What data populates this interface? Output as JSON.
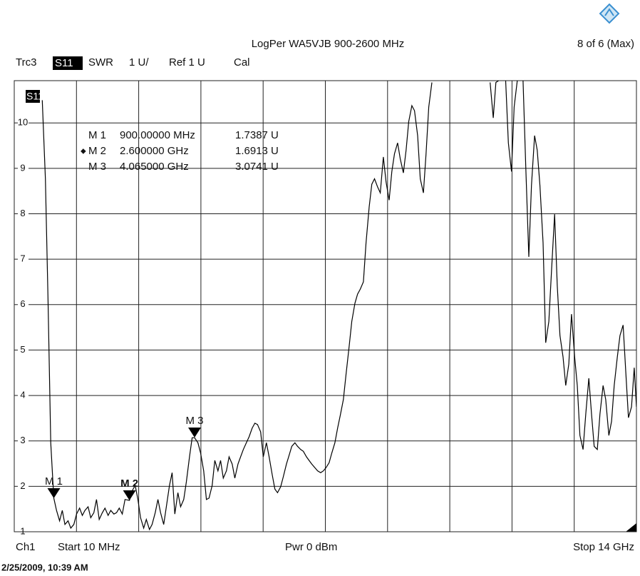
{
  "chart_data": {
    "type": "line",
    "title": "LogPer WA5VJB 900-2600 MHz",
    "title_right": "8 of 6 (Max)",
    "header": {
      "trace": "Trc3",
      "format": "SWR",
      "scale": "1 U/",
      "ref": "Ref 1 U",
      "cal": "Cal"
    },
    "footer": {
      "channel": "Ch1",
      "start": "Start 10 MHz",
      "power": "Pwr 0 dBm",
      "stop": "Stop 14 GHz"
    },
    "timestamp": "2/25/2009, 10:39 AM",
    "xlim": [
      0.01,
      14
    ],
    "ylim": [
      1,
      10.93
    ],
    "yticks": [
      1,
      2,
      3,
      4,
      5,
      6,
      7,
      8,
      9,
      10
    ],
    "x": [
      0.64,
      0.71,
      0.77,
      0.83,
      0.9,
      0.96,
      1.03,
      1.09,
      1.15,
      1.22,
      1.28,
      1.35,
      1.41,
      1.48,
      1.54,
      1.6,
      1.67,
      1.73,
      1.8,
      1.86,
      1.92,
      1.99,
      2.05,
      2.12,
      2.18,
      2.25,
      2.31,
      2.37,
      2.44,
      2.5,
      2.6,
      2.66,
      2.73,
      2.79,
      2.85,
      2.92,
      2.98,
      3.05,
      3.11,
      3.18,
      3.24,
      3.3,
      3.37,
      3.43,
      3.5,
      3.56,
      3.62,
      3.69,
      3.75,
      3.82,
      3.88,
      3.95,
      4.01,
      4.065,
      4.14,
      4.2,
      4.27,
      4.33,
      4.39,
      4.46,
      4.52,
      4.59,
      4.65,
      4.71,
      4.78,
      4.84,
      4.91,
      4.97,
      5.04,
      5.1,
      5.16,
      5.23,
      5.29,
      5.36,
      5.42,
      5.48,
      5.55,
      5.61,
      5.68,
      5.74,
      5.81,
      5.87,
      5.93,
      6.0,
      6.06,
      6.13,
      6.19,
      6.25,
      6.32,
      6.38,
      6.45,
      6.51,
      6.58,
      6.64,
      6.7,
      6.77,
      6.83,
      6.9,
      6.96,
      7.02,
      7.09,
      7.15,
      7.22,
      7.28,
      7.34,
      7.41,
      7.47,
      7.54,
      7.6,
      7.67,
      7.73,
      7.79,
      7.86,
      7.92,
      7.99,
      8.05,
      8.11,
      8.18,
      8.24,
      8.31,
      8.37,
      8.44,
      8.5,
      8.56,
      8.63,
      8.69,
      8.76,
      8.82,
      8.88,
      8.95,
      9.01,
      9.08,
      9.14,
      9.21,
      9.27,
      9.33,
      9.4,
      10.2,
      10.71,
      10.78,
      10.84,
      10.9,
      11.0,
      11.06,
      11.12,
      11.19,
      11.25,
      11.32,
      11.38,
      11.45,
      11.51,
      11.58,
      11.64,
      11.71,
      11.77,
      11.83,
      11.9,
      11.96,
      12.03,
      12.09,
      12.16,
      12.22,
      12.28,
      12.35,
      12.41,
      12.48,
      12.54,
      12.61,
      12.67,
      12.73,
      12.8,
      12.86,
      12.93,
      12.99,
      13.05,
      13.12,
      13.18,
      13.25,
      13.31,
      13.38,
      13.44,
      13.5,
      13.57,
      13.63,
      13.7,
      13.76,
      13.82,
      13.89,
      13.95,
      14.0
    ],
    "series": [
      {
        "name": "S11",
        "color": "#000000",
        "values": [
          10.5,
          8.77,
          6.1,
          2.96,
          1.74,
          1.47,
          1.24,
          1.47,
          1.16,
          1.24,
          1.08,
          1.16,
          1.39,
          1.52,
          1.36,
          1.47,
          1.55,
          1.31,
          1.42,
          1.71,
          1.27,
          1.42,
          1.52,
          1.36,
          1.47,
          1.39,
          1.42,
          1.52,
          1.39,
          1.71,
          1.69,
          1.9,
          2.02,
          1.71,
          1.31,
          1.08,
          1.27,
          1.05,
          1.16,
          1.42,
          1.71,
          1.42,
          1.16,
          1.55,
          2.02,
          2.3,
          1.39,
          1.86,
          1.55,
          1.71,
          2.1,
          2.65,
          3.07,
          3.07,
          2.96,
          2.73,
          2.34,
          1.71,
          1.74,
          2.02,
          2.57,
          2.34,
          2.57,
          2.18,
          2.34,
          2.65,
          2.49,
          2.18,
          2.49,
          2.65,
          2.81,
          2.96,
          3.09,
          3.28,
          3.39,
          3.36,
          3.2,
          2.65,
          2.96,
          2.65,
          2.26,
          1.94,
          1.86,
          1.99,
          2.21,
          2.49,
          2.68,
          2.88,
          2.96,
          2.88,
          2.81,
          2.77,
          2.65,
          2.57,
          2.49,
          2.41,
          2.34,
          2.3,
          2.34,
          2.41,
          2.52,
          2.73,
          2.96,
          3.28,
          3.56,
          3.91,
          4.46,
          5.08,
          5.63,
          6.03,
          6.23,
          6.34,
          6.5,
          7.36,
          8.15,
          8.65,
          8.77,
          8.59,
          8.46,
          9.25,
          8.7,
          8.3,
          8.93,
          9.32,
          9.56,
          9.21,
          8.9,
          9.4,
          10.03,
          10.38,
          10.27,
          9.72,
          8.77,
          8.46,
          9.32,
          10.35,
          10.89,
          null,
          10.89,
          10.11,
          10.89,
          10.93,
          null,
          10.93,
          9.56,
          8.93,
          10.35,
          10.93,
          null,
          10.93,
          9.09,
          7.05,
          8.62,
          9.72,
          9.4,
          8.62,
          7.36,
          5.16,
          5.63,
          6.73,
          7.99,
          6.42,
          5.32,
          4.85,
          4.22,
          4.69,
          5.79,
          4.85,
          4.22,
          3.12,
          2.81,
          3.59,
          4.38,
          3.59,
          2.88,
          2.81,
          3.59,
          4.22,
          3.91,
          3.12,
          3.43,
          4.22,
          4.85,
          5.32,
          5.55,
          4.53,
          3.51,
          3.75,
          4.61,
          3.75
        ]
      }
    ],
    "markers": [
      {
        "label": "M 1",
        "freq": "900.00000 MHz",
        "value": "1.7387 U",
        "x": 0.9,
        "y": 1.7387,
        "active": false
      },
      {
        "label": "M 2",
        "freq": "2.600000 GHz",
        "value": "1.6913 U",
        "x": 2.6,
        "y": 1.6913,
        "active": true
      },
      {
        "label": "M 3",
        "freq": "4.065000 GHz",
        "value": "3.0741 U",
        "x": 4.065,
        "y": 3.0741,
        "active": false
      }
    ]
  }
}
